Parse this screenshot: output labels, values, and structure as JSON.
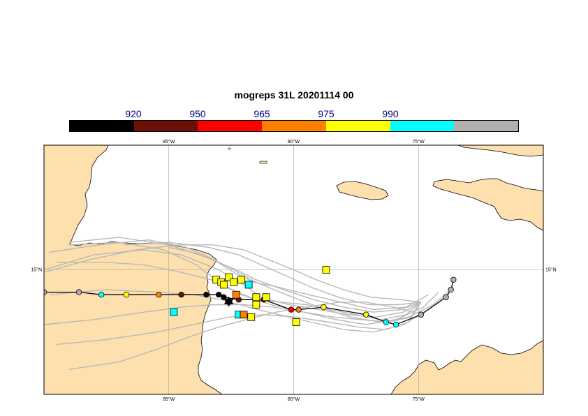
{
  "title": "mogreps 31L 20201114 00",
  "colorbar": {
    "colors": [
      "#000000",
      "#6b1106",
      "#ff0000",
      "#ff7f00",
      "#ffff00",
      "#00ffff",
      "#b0b0b0"
    ],
    "labels": [
      "920",
      "950",
      "965",
      "975",
      "990"
    ]
  },
  "map": {
    "land_color": "#fde0ae",
    "water_color": "#ffffff",
    "ensemble_color": "#b8b8b8",
    "lon_range": [
      -90,
      -70
    ],
    "lat_range": [
      10,
      20
    ],
    "meridians": [
      -85,
      -80,
      -75
    ],
    "parallels": [
      15
    ],
    "lon_labels": [
      "85°W",
      "80°W",
      "75°W"
    ],
    "lat_labels": [
      "15°N"
    ],
    "ensemble_tracks": [
      [
        [
          -74.9,
          13.7
        ],
        [
          -75.5,
          13.2
        ],
        [
          -76.5,
          13.0
        ],
        [
          -77.5,
          13.2
        ],
        [
          -78.5,
          13.4
        ],
        [
          -79.5,
          13.6
        ],
        [
          -80.5,
          13.7
        ],
        [
          -81.5,
          13.8
        ],
        [
          -82.5,
          14.2
        ],
        [
          -83.3,
          14.6
        ],
        [
          -84.5,
          14.9
        ],
        [
          -86.0,
          15.2
        ],
        [
          -87.5,
          15.3
        ],
        [
          -89.5,
          15.3
        ]
      ],
      [
        [
          -74.9,
          13.7
        ],
        [
          -75.6,
          13.3
        ],
        [
          -76.7,
          13.1
        ],
        [
          -77.8,
          13.2
        ],
        [
          -79.0,
          13.4
        ],
        [
          -80.2,
          13.6
        ],
        [
          -81.3,
          13.9
        ],
        [
          -82.0,
          14.4
        ],
        [
          -83.0,
          15.0
        ],
        [
          -84.5,
          15.6
        ],
        [
          -86.0,
          15.8
        ],
        [
          -88.0,
          15.6
        ],
        [
          -90.0,
          15.0
        ]
      ],
      [
        [
          -74.9,
          13.7
        ],
        [
          -75.3,
          13.1
        ],
        [
          -76.2,
          12.9
        ],
        [
          -77.3,
          13.0
        ],
        [
          -78.4,
          13.1
        ],
        [
          -79.6,
          13.3
        ],
        [
          -80.8,
          13.5
        ],
        [
          -82.0,
          13.6
        ],
        [
          -83.2,
          13.6
        ],
        [
          -84.5,
          13.5
        ],
        [
          -86.0,
          13.3
        ],
        [
          -88.0,
          13.0
        ],
        [
          -90.0,
          12.8
        ]
      ],
      [
        [
          -74.9,
          13.7
        ],
        [
          -75.7,
          13.4
        ],
        [
          -76.8,
          13.3
        ],
        [
          -78.0,
          13.5
        ],
        [
          -79.2,
          13.8
        ],
        [
          -80.4,
          14.2
        ],
        [
          -81.5,
          14.6
        ],
        [
          -82.3,
          15.0
        ],
        [
          -83.5,
          15.5
        ],
        [
          -85.0,
          16.0
        ],
        [
          -87.0,
          16.3
        ],
        [
          -89.0,
          16.1
        ]
      ],
      [
        [
          -74.9,
          13.7
        ],
        [
          -75.4,
          12.9
        ],
        [
          -76.3,
          12.6
        ],
        [
          -77.4,
          12.7
        ],
        [
          -78.6,
          12.9
        ],
        [
          -79.9,
          13.1
        ],
        [
          -81.2,
          13.2
        ],
        [
          -82.6,
          13.1
        ],
        [
          -84.0,
          12.8
        ],
        [
          -85.5,
          12.5
        ],
        [
          -87.5,
          12.2
        ],
        [
          -89.5,
          12.0
        ]
      ],
      [
        [
          -74.6,
          14.0
        ],
        [
          -75.5,
          13.5
        ],
        [
          -76.8,
          13.4
        ],
        [
          -78.1,
          13.7
        ],
        [
          -79.4,
          14.0
        ],
        [
          -80.6,
          14.3
        ],
        [
          -81.6,
          14.5
        ],
        [
          -82.4,
          14.9
        ],
        [
          -83.2,
          15.4
        ],
        [
          -84.3,
          15.9
        ],
        [
          -85.8,
          16.2
        ],
        [
          -87.8,
          16.0
        ],
        [
          -89.8,
          15.7
        ]
      ],
      [
        [
          -74.9,
          13.7
        ],
        [
          -75.8,
          13.6
        ],
        [
          -77.0,
          13.6
        ],
        [
          -78.2,
          13.9
        ],
        [
          -79.3,
          14.3
        ],
        [
          -80.4,
          14.8
        ],
        [
          -81.3,
          15.2
        ],
        [
          -82.2,
          15.6
        ],
        [
          -83.4,
          15.9
        ],
        [
          -85.0,
          16.1
        ],
        [
          -86.8,
          16.0
        ]
      ],
      [
        [
          -74.9,
          13.7
        ],
        [
          -75.2,
          13.3
        ],
        [
          -76.0,
          13.5
        ],
        [
          -77.1,
          13.7
        ],
        [
          -78.2,
          13.7
        ],
        [
          -79.5,
          13.5
        ],
        [
          -80.7,
          13.3
        ],
        [
          -81.9,
          13.0
        ],
        [
          -83.0,
          12.7
        ],
        [
          -84.2,
          12.3
        ],
        [
          -85.5,
          11.8
        ],
        [
          -87.0,
          11.3
        ],
        [
          -89.0,
          11.0
        ]
      ],
      [
        [
          -73.8,
          14.0
        ],
        [
          -74.6,
          13.4
        ],
        [
          -75.6,
          12.8
        ],
        [
          -76.8,
          12.5
        ],
        [
          -78.0,
          12.6
        ],
        [
          -79.3,
          12.9
        ],
        [
          -80.6,
          13.2
        ],
        [
          -81.8,
          13.5
        ],
        [
          -82.9,
          13.8
        ],
        [
          -84.0,
          14.0
        ],
        [
          -85.5,
          14.1
        ],
        [
          -87.5,
          14.2
        ],
        [
          -89.8,
          14.0
        ]
      ],
      [
        [
          -74.2,
          14.1
        ],
        [
          -74.8,
          13.5
        ],
        [
          -75.9,
          13.0
        ],
        [
          -77.1,
          12.8
        ],
        [
          -78.3,
          13.0
        ],
        [
          -79.6,
          13.3
        ],
        [
          -80.9,
          13.6
        ],
        [
          -82.1,
          14.0
        ],
        [
          -83.0,
          14.5
        ],
        [
          -83.9,
          15.2
        ],
        [
          -85.2,
          15.8
        ],
        [
          -87.0,
          16.1
        ],
        [
          -89.0,
          16.0
        ]
      ],
      [
        [
          -73.6,
          14.3
        ],
        [
          -74.4,
          13.6
        ],
        [
          -75.4,
          13.1
        ],
        [
          -76.5,
          12.9
        ],
        [
          -77.7,
          13.1
        ],
        [
          -79.0,
          13.5
        ],
        [
          -80.3,
          14.0
        ],
        [
          -81.5,
          14.5
        ],
        [
          -82.6,
          15.1
        ],
        [
          -83.6,
          15.6
        ],
        [
          -85.0,
          15.9
        ]
      ],
      [
        [
          -74.9,
          13.7
        ],
        [
          -75.7,
          13.8
        ],
        [
          -76.9,
          13.9
        ],
        [
          -78.0,
          14.2
        ],
        [
          -79.1,
          14.6
        ],
        [
          -80.0,
          15.0
        ],
        [
          -81.0,
          15.4
        ],
        [
          -82.0,
          15.8
        ],
        [
          -83.2,
          16.0
        ],
        [
          -84.6,
          16.0
        ],
        [
          -86.3,
          15.8
        ],
        [
          -88.2,
          15.4
        ],
        [
          -90.0,
          14.9
        ]
      ]
    ],
    "deterministic_track": [
      {
        "lon": -73.6,
        "lat": 14.6,
        "cat": 6
      },
      {
        "lon": -73.7,
        "lat": 14.2,
        "cat": 6
      },
      {
        "lon": -73.9,
        "lat": 13.9,
        "cat": 6
      },
      {
        "lon": -74.9,
        "lat": 13.2,
        "cat": 6
      },
      {
        "lon": -75.9,
        "lat": 12.8,
        "cat": 5
      },
      {
        "lon": -76.3,
        "lat": 12.9,
        "cat": 5
      },
      {
        "lon": -77.1,
        "lat": 13.2,
        "cat": 4
      },
      {
        "lon": -78.8,
        "lat": 13.5,
        "cat": 4
      },
      {
        "lon": -79.8,
        "lat": 13.4,
        "cat": 3
      },
      {
        "lon": -80.1,
        "lat": 13.4,
        "cat": 2
      },
      {
        "lon": -81.2,
        "lat": 13.8,
        "cat": 1
      },
      {
        "lon": -82.2,
        "lat": 13.8,
        "cat": 1
      },
      {
        "lon": -82.8,
        "lat": 13.9,
        "cat": 0
      },
      {
        "lon": -83.0,
        "lat": 14.0,
        "cat": 0
      },
      {
        "lon": -83.5,
        "lat": 14.0,
        "cat": 0
      },
      {
        "lon": -84.5,
        "lat": 14.0,
        "cat": 1
      },
      {
        "lon": -85.4,
        "lat": 14.0,
        "cat": 3
      },
      {
        "lon": -86.7,
        "lat": 14.0,
        "cat": 4
      },
      {
        "lon": -87.7,
        "lat": 14.0,
        "cat": 5
      },
      {
        "lon": -88.6,
        "lat": 14.1,
        "cat": 6
      },
      {
        "lon": -90.0,
        "lat": 14.1,
        "cat": 6
      }
    ],
    "landfall_markers": [
      {
        "lon": -78.7,
        "lat": 15.0,
        "cat": 4
      },
      {
        "lon": -83.1,
        "lat": 14.6,
        "cat": 4
      },
      {
        "lon": -82.6,
        "lat": 14.7,
        "cat": 4
      },
      {
        "lon": -82.9,
        "lat": 14.5,
        "cat": 4
      },
      {
        "lon": -82.4,
        "lat": 14.5,
        "cat": 4
      },
      {
        "lon": -82.3,
        "lat": 14.0,
        "cat": 3
      },
      {
        "lon": -82.8,
        "lat": 14.4,
        "cat": 4
      },
      {
        "lon": -82.1,
        "lat": 14.6,
        "cat": 4
      },
      {
        "lon": -81.8,
        "lat": 14.4,
        "cat": 5
      },
      {
        "lon": -81.5,
        "lat": 13.9,
        "cat": 4
      },
      {
        "lon": -81.5,
        "lat": 13.6,
        "cat": 4
      },
      {
        "lon": -81.1,
        "lat": 13.9,
        "cat": 4
      },
      {
        "lon": -82.2,
        "lat": 13.2,
        "cat": 5
      },
      {
        "lon": -82.0,
        "lat": 13.2,
        "cat": 3
      },
      {
        "lon": -81.7,
        "lat": 13.1,
        "cat": 4
      },
      {
        "lon": -84.8,
        "lat": 13.3,
        "cat": 5
      },
      {
        "lon": -79.9,
        "lat": 12.9,
        "cat": 4
      }
    ],
    "landfall_triangles": [
      {
        "lon": -82.6,
        "lat": 13.8,
        "cat": 0
      },
      {
        "lon": -82.6,
        "lat": 13.65,
        "cat": 0
      }
    ]
  }
}
